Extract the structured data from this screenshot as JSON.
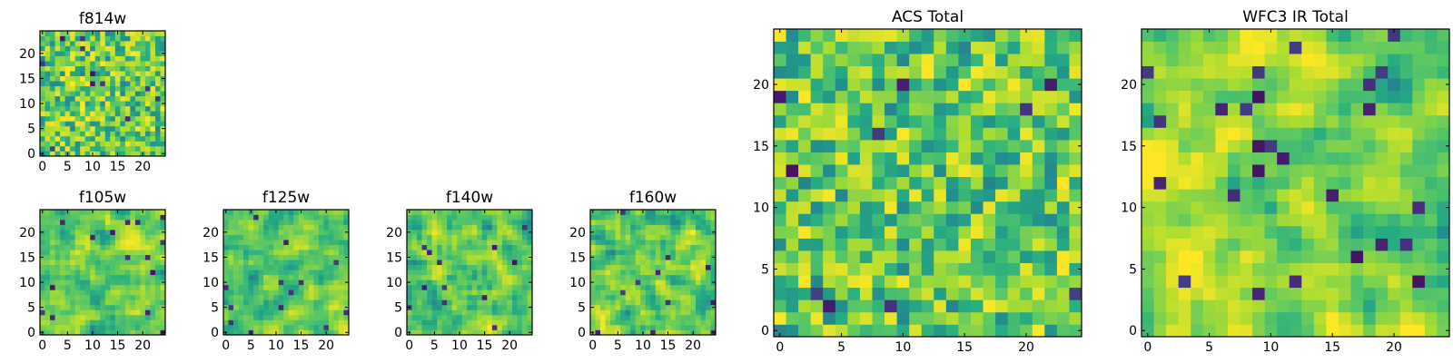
{
  "chart_data": [
    {
      "type": "heatmap",
      "title": "f814w",
      "colormap": "viridis",
      "grid_size": 25,
      "xlim": [
        -0.5,
        24.5
      ],
      "ylim": [
        -0.5,
        24.5
      ],
      "xticks": [
        0,
        5,
        10,
        15,
        20
      ],
      "yticks": [
        0,
        5,
        10,
        15,
        20
      ],
      "texture": "fine_noise",
      "seed": 11
    },
    {
      "type": "heatmap",
      "title": "f105w",
      "colormap": "viridis",
      "grid_size": 25,
      "xlim": [
        -0.5,
        24.5
      ],
      "ylim": [
        -0.5,
        24.5
      ],
      "xticks": [
        0,
        5,
        10,
        15,
        20
      ],
      "yticks": [
        0,
        5,
        10,
        15,
        20
      ],
      "texture": "smooth_noise",
      "seed": 23
    },
    {
      "type": "heatmap",
      "title": "f125w",
      "colormap": "viridis",
      "grid_size": 25,
      "xlim": [
        -0.5,
        24.5
      ],
      "ylim": [
        -0.5,
        24.5
      ],
      "xticks": [
        0,
        5,
        10,
        15,
        20
      ],
      "yticks": [
        0,
        5,
        10,
        15,
        20
      ],
      "texture": "smooth_noise",
      "seed": 37
    },
    {
      "type": "heatmap",
      "title": "f140w",
      "colormap": "viridis",
      "grid_size": 25,
      "xlim": [
        -0.5,
        24.5
      ],
      "ylim": [
        -0.5,
        24.5
      ],
      "xticks": [
        0,
        5,
        10,
        15,
        20
      ],
      "yticks": [
        0,
        5,
        10,
        15,
        20
      ],
      "texture": "smooth_noise",
      "seed": 41
    },
    {
      "type": "heatmap",
      "title": "f160w",
      "colormap": "viridis",
      "grid_size": 25,
      "xlim": [
        -0.5,
        24.5
      ],
      "ylim": [
        -0.5,
        24.5
      ],
      "xticks": [
        0,
        5,
        10,
        15,
        20
      ],
      "yticks": [
        0,
        5,
        10,
        15,
        20
      ],
      "texture": "smooth_noise",
      "seed": 53
    },
    {
      "type": "heatmap",
      "title": "ACS Total",
      "colormap": "viridis",
      "grid_size": 25,
      "xlim": [
        -0.5,
        24.5
      ],
      "ylim": [
        -0.5,
        24.5
      ],
      "xticks": [
        0,
        5,
        10,
        15,
        20
      ],
      "yticks": [
        0,
        5,
        10,
        15,
        20
      ],
      "texture": "fine_noise",
      "seed": 67
    },
    {
      "type": "heatmap",
      "title": "WFC3 IR Total",
      "colormap": "viridis",
      "grid_size": 25,
      "xlim": [
        -0.5,
        24.5
      ],
      "ylim": [
        -0.5,
        24.5
      ],
      "xticks": [
        0,
        5,
        10,
        15,
        20
      ],
      "yticks": [
        0,
        5,
        10,
        15,
        20
      ],
      "texture": "gradient_noise",
      "seed": 79
    }
  ]
}
